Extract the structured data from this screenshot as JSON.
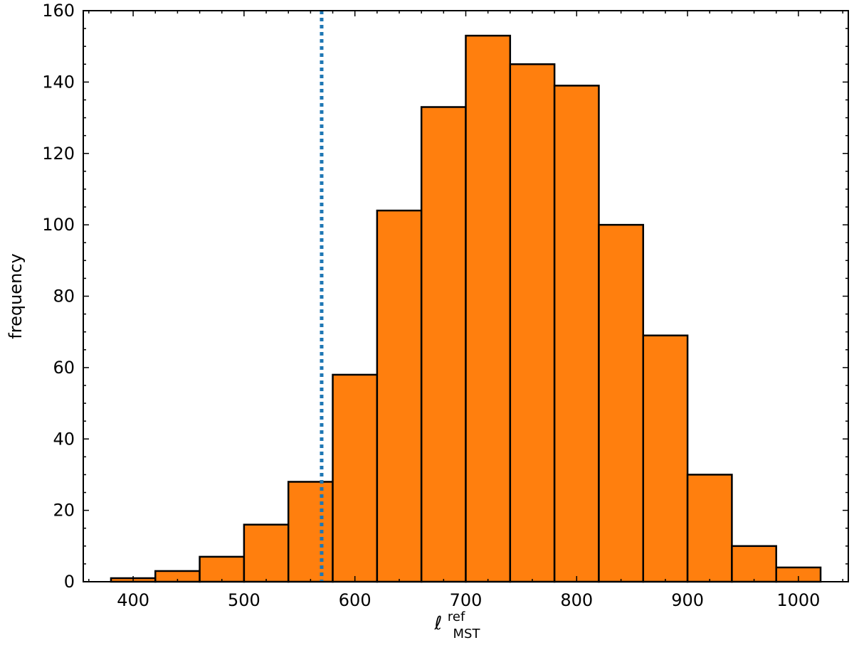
{
  "chart_data": {
    "type": "histogram",
    "title": "",
    "xlabel_main": "ℓ",
    "xlabel_sup": "ref",
    "xlabel_sub": "MST",
    "ylabel": "frequency",
    "xlim": [
      355,
      1045
    ],
    "ylim": [
      0,
      160
    ],
    "bin_edges": [
      380,
      420,
      460,
      500,
      540,
      580,
      620,
      660,
      700,
      740,
      780,
      820,
      860,
      900,
      940,
      980,
      1020
    ],
    "counts": [
      1,
      3,
      7,
      16,
      28,
      58,
      104,
      133,
      153,
      145,
      139,
      100,
      69,
      30,
      10,
      4
    ],
    "bar_color": "#ff7f0e",
    "edge_color": "#000000",
    "vline": {
      "x": 570,
      "color": "#1f77b4",
      "style": "dotted"
    },
    "x_ticks": [
      400,
      500,
      600,
      700,
      800,
      900,
      1000
    ],
    "x_tick_labels": [
      "400",
      "500",
      "600",
      "700",
      "800",
      "900",
      "1000"
    ],
    "y_ticks": [
      0,
      20,
      40,
      60,
      80,
      100,
      120,
      140,
      160
    ],
    "y_tick_labels": [
      "0",
      "20",
      "40",
      "60",
      "80",
      "100",
      "120",
      "140",
      "160"
    ],
    "grid": false,
    "legend": "none"
  }
}
